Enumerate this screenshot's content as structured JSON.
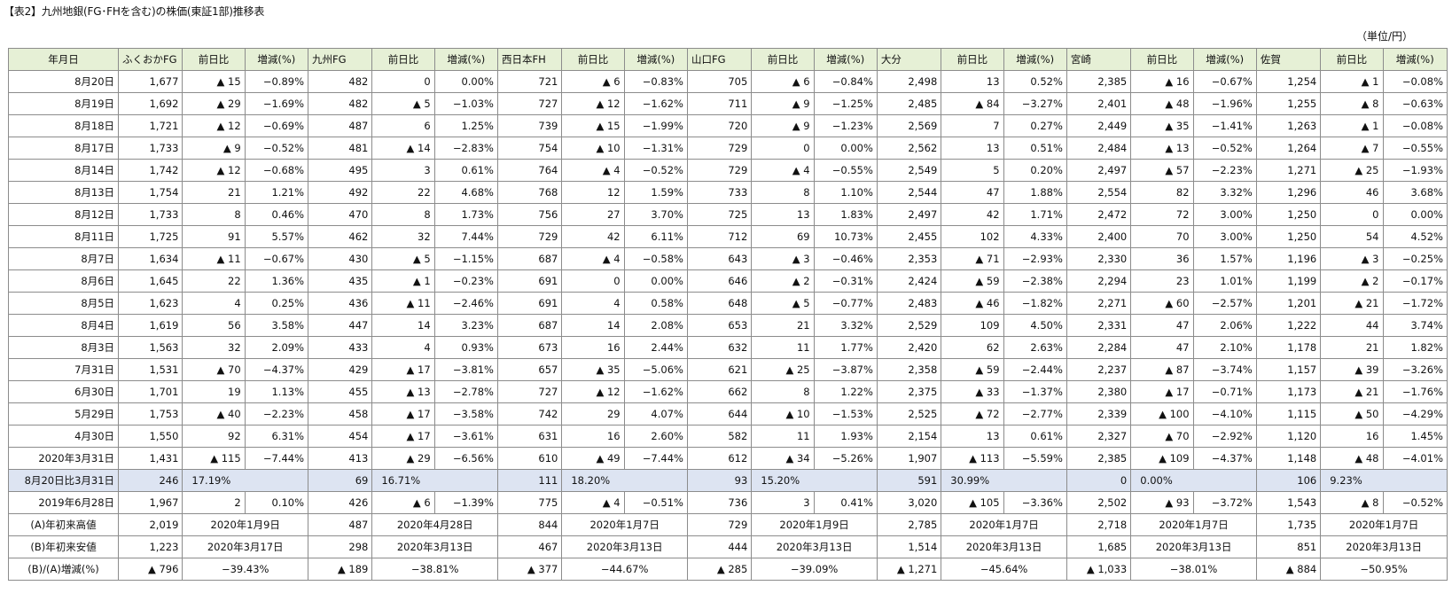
{
  "title": "【表2】九州地銀(FG･FHを含む)の株価(東証1部)推移表",
  "unit": "（単位/円）",
  "headers": [
    "年月日",
    "ふくおかFG",
    "前日比",
    "増減(%)",
    "九州FG",
    "前日比",
    "増減(%)",
    "西日本FH",
    "前日比",
    "増減(%)",
    "山口FG",
    "前日比",
    "増減(%)",
    "大分",
    "前日比",
    "増減(%)",
    "宮崎",
    "前日比",
    "増減(%)",
    "佐賀",
    "前日比",
    "増減(%)"
  ],
  "rows": [
    [
      "8月20日",
      "1,677",
      "▲ 15",
      "−0.89%",
      "482",
      "0",
      "0.00%",
      "721",
      "▲ 6",
      "−0.83%",
      "705",
      "▲ 6",
      "−0.84%",
      "2,498",
      "13",
      "0.52%",
      "2,385",
      "▲ 16",
      "−0.67%",
      "1,254",
      "▲ 1",
      "−0.08%"
    ],
    [
      "8月19日",
      "1,692",
      "▲ 29",
      "−1.69%",
      "482",
      "▲ 5",
      "−1.03%",
      "727",
      "▲ 12",
      "−1.62%",
      "711",
      "▲ 9",
      "−1.25%",
      "2,485",
      "▲ 84",
      "−3.27%",
      "2,401",
      "▲ 48",
      "−1.96%",
      "1,255",
      "▲ 8",
      "−0.63%"
    ],
    [
      "8月18日",
      "1,721",
      "▲ 12",
      "−0.69%",
      "487",
      "6",
      "1.25%",
      "739",
      "▲ 15",
      "−1.99%",
      "720",
      "▲ 9",
      "−1.23%",
      "2,569",
      "7",
      "0.27%",
      "2,449",
      "▲ 35",
      "−1.41%",
      "1,263",
      "▲ 1",
      "−0.08%"
    ],
    [
      "8月17日",
      "1,733",
      "▲ 9",
      "−0.52%",
      "481",
      "▲ 14",
      "−2.83%",
      "754",
      "▲ 10",
      "−1.31%",
      "729",
      "0",
      "0.00%",
      "2,562",
      "13",
      "0.51%",
      "2,484",
      "▲ 13",
      "−0.52%",
      "1,264",
      "▲ 7",
      "−0.55%"
    ],
    [
      "8月14日",
      "1,742",
      "▲ 12",
      "−0.68%",
      "495",
      "3",
      "0.61%",
      "764",
      "▲ 4",
      "−0.52%",
      "729",
      "▲ 4",
      "−0.55%",
      "2,549",
      "5",
      "0.20%",
      "2,497",
      "▲ 57",
      "−2.23%",
      "1,271",
      "▲ 25",
      "−1.93%"
    ],
    [
      "8月13日",
      "1,754",
      "21",
      "1.21%",
      "492",
      "22",
      "4.68%",
      "768",
      "12",
      "1.59%",
      "733",
      "8",
      "1.10%",
      "2,544",
      "47",
      "1.88%",
      "2,554",
      "82",
      "3.32%",
      "1,296",
      "46",
      "3.68%"
    ],
    [
      "8月12日",
      "1,733",
      "8",
      "0.46%",
      "470",
      "8",
      "1.73%",
      "756",
      "27",
      "3.70%",
      "725",
      "13",
      "1.83%",
      "2,497",
      "42",
      "1.71%",
      "2,472",
      "72",
      "3.00%",
      "1,250",
      "0",
      "0.00%"
    ],
    [
      "8月11日",
      "1,725",
      "91",
      "5.57%",
      "462",
      "32",
      "7.44%",
      "729",
      "42",
      "6.11%",
      "712",
      "69",
      "10.73%",
      "2,455",
      "102",
      "4.33%",
      "2,400",
      "70",
      "3.00%",
      "1,250",
      "54",
      "4.52%"
    ],
    [
      "8月7日",
      "1,634",
      "▲ 11",
      "−0.67%",
      "430",
      "▲ 5",
      "−1.15%",
      "687",
      "▲ 4",
      "−0.58%",
      "643",
      "▲ 3",
      "−0.46%",
      "2,353",
      "▲ 71",
      "−2.93%",
      "2,330",
      "36",
      "1.57%",
      "1,196",
      "▲ 3",
      "−0.25%"
    ],
    [
      "8月6日",
      "1,645",
      "22",
      "1.36%",
      "435",
      "▲ 1",
      "−0.23%",
      "691",
      "0",
      "0.00%",
      "646",
      "▲ 2",
      "−0.31%",
      "2,424",
      "▲ 59",
      "−2.38%",
      "2,294",
      "23",
      "1.01%",
      "1,199",
      "▲ 2",
      "−0.17%"
    ],
    [
      "8月5日",
      "1,623",
      "4",
      "0.25%",
      "436",
      "▲ 11",
      "−2.46%",
      "691",
      "4",
      "0.58%",
      "648",
      "▲ 5",
      "−0.77%",
      "2,483",
      "▲ 46",
      "−1.82%",
      "2,271",
      "▲ 60",
      "−2.57%",
      "1,201",
      "▲ 21",
      "−1.72%"
    ],
    [
      "8月4日",
      "1,619",
      "56",
      "3.58%",
      "447",
      "14",
      "3.23%",
      "687",
      "14",
      "2.08%",
      "653",
      "21",
      "3.32%",
      "2,529",
      "109",
      "4.50%",
      "2,331",
      "47",
      "2.06%",
      "1,222",
      "44",
      "3.74%"
    ],
    [
      "8月3日",
      "1,563",
      "32",
      "2.09%",
      "433",
      "4",
      "0.93%",
      "673",
      "16",
      "2.44%",
      "632",
      "11",
      "1.77%",
      "2,420",
      "62",
      "2.63%",
      "2,284",
      "47",
      "2.10%",
      "1,178",
      "21",
      "1.82%"
    ],
    [
      "7月31日",
      "1,531",
      "▲ 70",
      "−4.37%",
      "429",
      "▲ 17",
      "−3.81%",
      "657",
      "▲ 35",
      "−5.06%",
      "621",
      "▲ 25",
      "−3.87%",
      "2,358",
      "▲ 59",
      "−2.44%",
      "2,237",
      "▲ 87",
      "−3.74%",
      "1,157",
      "▲ 39",
      "−3.26%"
    ],
    [
      "6月30日",
      "1,701",
      "19",
      "1.13%",
      "455",
      "▲ 13",
      "−2.78%",
      "727",
      "▲ 12",
      "−1.62%",
      "662",
      "8",
      "1.22%",
      "2,375",
      "▲ 33",
      "−1.37%",
      "2,380",
      "▲ 17",
      "−0.71%",
      "1,173",
      "▲ 21",
      "−1.76%"
    ],
    [
      "5月29日",
      "1,753",
      "▲ 40",
      "−2.23%",
      "458",
      "▲ 17",
      "−3.58%",
      "742",
      "29",
      "4.07%",
      "644",
      "▲ 10",
      "−1.53%",
      "2,525",
      "▲ 72",
      "−2.77%",
      "2,339",
      "▲ 100",
      "−4.10%",
      "1,115",
      "▲ 50",
      "−4.29%"
    ],
    [
      "4月30日",
      "1,550",
      "92",
      "6.31%",
      "454",
      "▲ 17",
      "−3.61%",
      "631",
      "16",
      "2.60%",
      "582",
      "11",
      "1.93%",
      "2,154",
      "13",
      "0.61%",
      "2,327",
      "▲ 70",
      "−2.92%",
      "1,120",
      "16",
      "1.45%"
    ],
    [
      "2020年3月31日",
      "1,431",
      "▲ 115",
      "−7.44%",
      "413",
      "▲ 29",
      "−6.56%",
      "610",
      "▲ 49",
      "−7.44%",
      "612",
      "▲ 34",
      "−5.26%",
      "1,907",
      "▲ 113",
      "−5.59%",
      "2,385",
      "▲ 109",
      "−4.37%",
      "1,148",
      "▲ 48",
      "−4.01%"
    ]
  ],
  "highlight_row": {
    "label": "8月20日比3月31日",
    "cells": [
      [
        "246",
        "17.19%"
      ],
      [
        "69",
        "16.71%"
      ],
      [
        "111",
        "18.20%"
      ],
      [
        "93",
        "15.20%"
      ],
      [
        "591",
        "30.99%"
      ],
      [
        "0",
        "0.00%"
      ],
      [
        "106",
        "9.23%"
      ]
    ]
  },
  "row_2019": [
    "2019年6月28日",
    "1,967",
    "2",
    "0.10%",
    "426",
    "▲ 6",
    "−1.39%",
    "775",
    "▲ 4",
    "−0.51%",
    "736",
    "3",
    "0.41%",
    "3,020",
    "▲ 105",
    "−3.36%",
    "2,502",
    "▲ 93",
    "−3.72%",
    "1,543",
    "▲ 8",
    "−0.52%"
  ],
  "high_row": {
    "label": "(A)年初来高値",
    "cells": [
      [
        "2,019",
        "2020年1月9日"
      ],
      [
        "487",
        "2020年4月28日"
      ],
      [
        "844",
        "2020年1月7日"
      ],
      [
        "729",
        "2020年1月9日"
      ],
      [
        "2,785",
        "2020年1月7日"
      ],
      [
        "2,718",
        "2020年1月7日"
      ],
      [
        "1,735",
        "2020年1月7日"
      ]
    ]
  },
  "low_row": {
    "label": "(B)年初来安値",
    "cells": [
      [
        "1,223",
        "2020年3月17日"
      ],
      [
        "298",
        "2020年3月13日"
      ],
      [
        "467",
        "2020年3月13日"
      ],
      [
        "444",
        "2020年3月13日"
      ],
      [
        "1,514",
        "2020年3月13日"
      ],
      [
        "1,685",
        "2020年3月13日"
      ],
      [
        "851",
        "2020年3月13日"
      ]
    ]
  },
  "diff_row": {
    "label": "(B)/(A)増減(%)",
    "cells": [
      [
        "▲ 796",
        "−39.43%"
      ],
      [
        "▲ 189",
        "−38.81%"
      ],
      [
        "▲ 377",
        "−44.67%"
      ],
      [
        "▲ 285",
        "−39.09%"
      ],
      [
        "▲ 1,271",
        "−45.64%"
      ],
      [
        "▲ 1,033",
        "−38.01%"
      ],
      [
        "▲ 884",
        "−50.95%"
      ]
    ]
  },
  "colors": {
    "header_bg": "#e6f0d6",
    "highlight_bg": "#dde4f2",
    "border": "#8c8c8c"
  }
}
